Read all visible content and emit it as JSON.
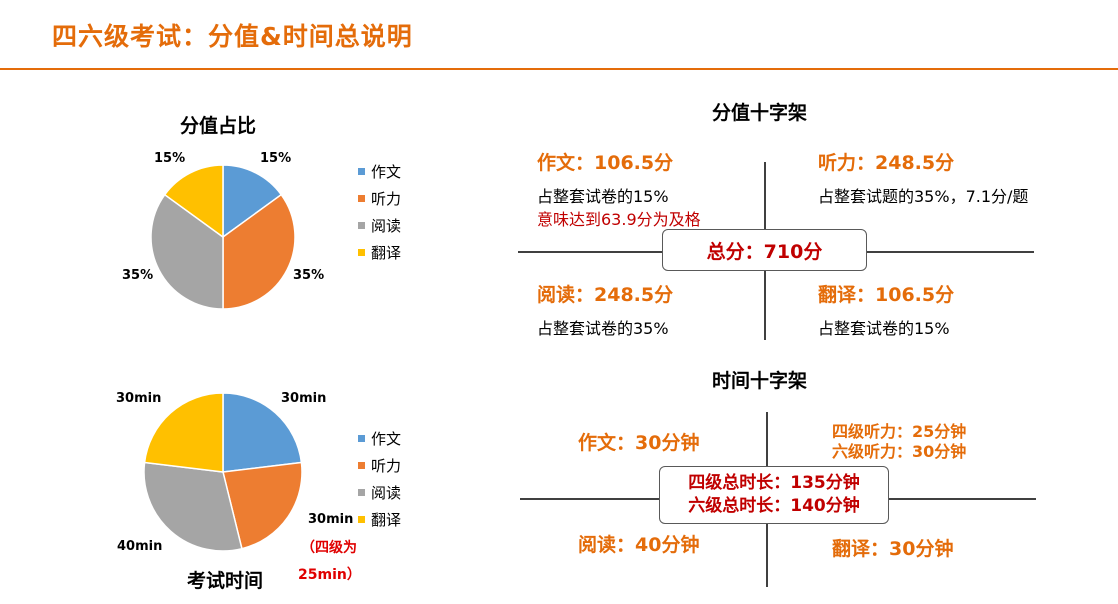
{
  "header": {
    "title": "四六级考试：分值&时间总说明"
  },
  "score_pie": {
    "title": "分值占比",
    "labels": [
      "15%",
      "35%",
      "35%",
      "15%"
    ],
    "legend": [
      "作文",
      "听力",
      "阅读",
      "翻译"
    ]
  },
  "time_pie": {
    "title": "考试时间",
    "labels": [
      "30min",
      "30min",
      "40min",
      "30min"
    ],
    "legend": [
      "作文",
      "听力",
      "阅读",
      "翻译"
    ],
    "note_line1": "（四级为",
    "note_line2": "25min）"
  },
  "chart_data": [
    {
      "type": "pie",
      "title": "分值占比",
      "categories": [
        "作文",
        "听力",
        "阅读",
        "翻译"
      ],
      "values": [
        15,
        35,
        35,
        15
      ],
      "colors": [
        "#5b9bd5",
        "#ed7d31",
        "#a5a5a5",
        "#ffc000"
      ],
      "legend": "right"
    },
    {
      "type": "pie",
      "title": "考试时间",
      "categories": [
        "作文",
        "听力",
        "阅读",
        "翻译"
      ],
      "values": [
        30,
        30,
        40,
        30
      ],
      "colors": [
        "#5b9bd5",
        "#ed7d31",
        "#a5a5a5",
        "#ffc000"
      ],
      "legend": "right"
    }
  ],
  "score_cross": {
    "title": "分值十字架",
    "writing": {
      "head": "作文：106.5分",
      "line1": "占整套试卷的15%",
      "line2": "意味达到63.9分为及格"
    },
    "listening": {
      "head": "听力：248.5分",
      "line1": "占整套试题的35%，7.1分/题"
    },
    "reading": {
      "head": "阅读：248.5分",
      "line1": "占整套试卷的35%"
    },
    "translation": {
      "head": "翻译：106.5分",
      "line1": "占整套试卷的15%"
    },
    "total": "总分：710分"
  },
  "time_cross": {
    "title": "时间十字架",
    "writing": "作文：30分钟",
    "listening_cet4": "四级听力：25分钟",
    "listening_cet6": "六级听力：30分钟",
    "reading": "阅读：40分钟",
    "translation": "翻译：30分钟",
    "total_cet4": "四级总时长：135分钟",
    "total_cet6": "六级总时长：140分钟"
  },
  "colors": {
    "accent": "#e46c0a",
    "red": "#c00000"
  }
}
